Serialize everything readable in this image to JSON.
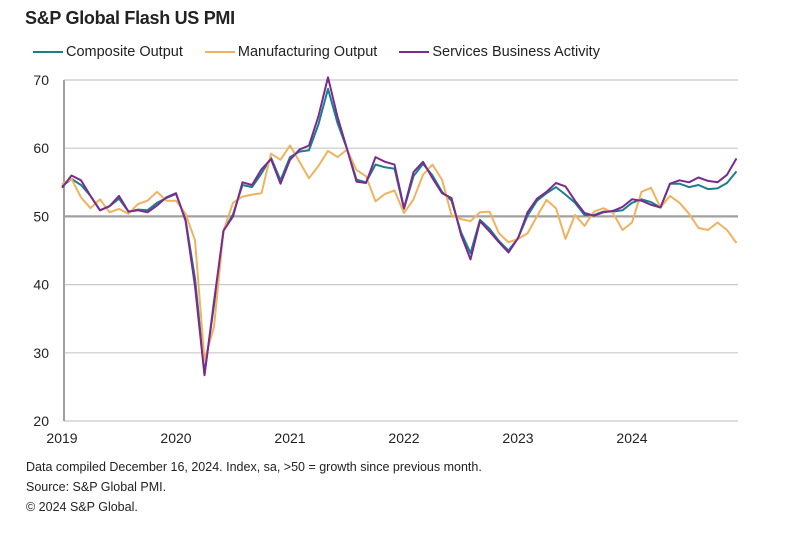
{
  "chart_data": {
    "type": "line",
    "title": "S&P Global Flash US PMI",
    "x_start": "2019-01",
    "x_frequency": "monthly",
    "x_tick_labels": [
      "2019",
      "2020",
      "2021",
      "2022",
      "2023",
      "2024"
    ],
    "y_ticks": [
      20,
      30,
      40,
      50,
      60,
      70
    ],
    "ylim": [
      20,
      70
    ],
    "reference_line": 50,
    "grid": "horizontal",
    "legend_position": "top",
    "series": [
      {
        "name": "Composite Output",
        "color": "#1b7e8c",
        "values": [
          54.4,
          55.5,
          54.6,
          53.0,
          50.9,
          51.5,
          52.6,
          50.7,
          51.0,
          50.9,
          52.0,
          52.7,
          53.3,
          49.6,
          40.9,
          27.0,
          37.0,
          47.9,
          50.3,
          54.6,
          54.3,
          56.3,
          58.6,
          55.3,
          58.7,
          59.5,
          59.7,
          63.5,
          68.7,
          63.7,
          59.9,
          55.4,
          55.0,
          57.6,
          57.2,
          57.0,
          51.1,
          55.9,
          57.7,
          56.0,
          53.6,
          52.3,
          47.7,
          44.6,
          49.5,
          48.2,
          46.4,
          45.0,
          46.8,
          50.1,
          52.3,
          53.4,
          54.3,
          53.2,
          52.0,
          50.2,
          50.2,
          50.7,
          50.7,
          50.9,
          52.0,
          52.5,
          52.1,
          51.3,
          54.8,
          54.8,
          54.3,
          54.6,
          54.0,
          54.1,
          54.9,
          56.6
        ]
      },
      {
        "name": "Manufacturing Output",
        "color": "#f0b25e",
        "values": [
          54.7,
          55.5,
          52.8,
          51.2,
          52.5,
          50.6,
          51.1,
          50.4,
          51.8,
          52.3,
          53.6,
          52.3,
          52.3,
          50.4,
          46.5,
          28.9,
          33.8,
          47.9,
          52.0,
          52.9,
          53.2,
          53.4,
          59.2,
          58.3,
          60.4,
          58.0,
          55.6,
          57.4,
          59.6,
          58.7,
          59.8,
          56.8,
          55.9,
          52.2,
          53.3,
          53.8,
          50.5,
          52.5,
          56.1,
          57.6,
          55.4,
          50.2,
          49.6,
          49.3,
          50.6,
          50.7,
          47.5,
          46.2,
          46.7,
          47.5,
          50.0,
          52.4,
          51.2,
          46.7,
          50.2,
          48.6,
          50.7,
          51.2,
          50.5,
          48.0,
          49.1,
          53.6,
          54.2,
          51.3,
          53.0,
          52.0,
          50.4,
          48.3,
          48.0,
          49.1,
          48.0,
          46.1
        ]
      },
      {
        "name": "Services Business Activity",
        "color": "#7a2b8e",
        "values": [
          54.2,
          56.0,
          55.3,
          53.0,
          50.9,
          51.5,
          53.0,
          50.7,
          50.9,
          50.6,
          51.6,
          52.8,
          53.4,
          49.4,
          39.8,
          26.7,
          37.5,
          47.9,
          50.0,
          55.0,
          54.6,
          56.9,
          58.4,
          54.8,
          58.3,
          59.8,
          60.4,
          64.7,
          70.4,
          64.6,
          59.9,
          55.1,
          54.9,
          58.7,
          58.0,
          57.6,
          51.2,
          56.5,
          58.0,
          55.6,
          53.4,
          52.7,
          47.3,
          43.7,
          49.3,
          47.8,
          46.2,
          44.7,
          46.8,
          50.6,
          52.6,
          53.6,
          54.9,
          54.4,
          52.3,
          50.5,
          50.1,
          50.6,
          50.8,
          51.4,
          52.5,
          52.3,
          51.7,
          51.3,
          54.8,
          55.3,
          55.0,
          55.7,
          55.2,
          55.0,
          56.1,
          58.5
        ]
      }
    ]
  },
  "footer": {
    "note": "Data compiled December 16, 2024. Index, sa, >50 = growth since previous month.",
    "source": "Source: S&P Global PMI.",
    "copyright": "© 2024 S&P Global."
  }
}
